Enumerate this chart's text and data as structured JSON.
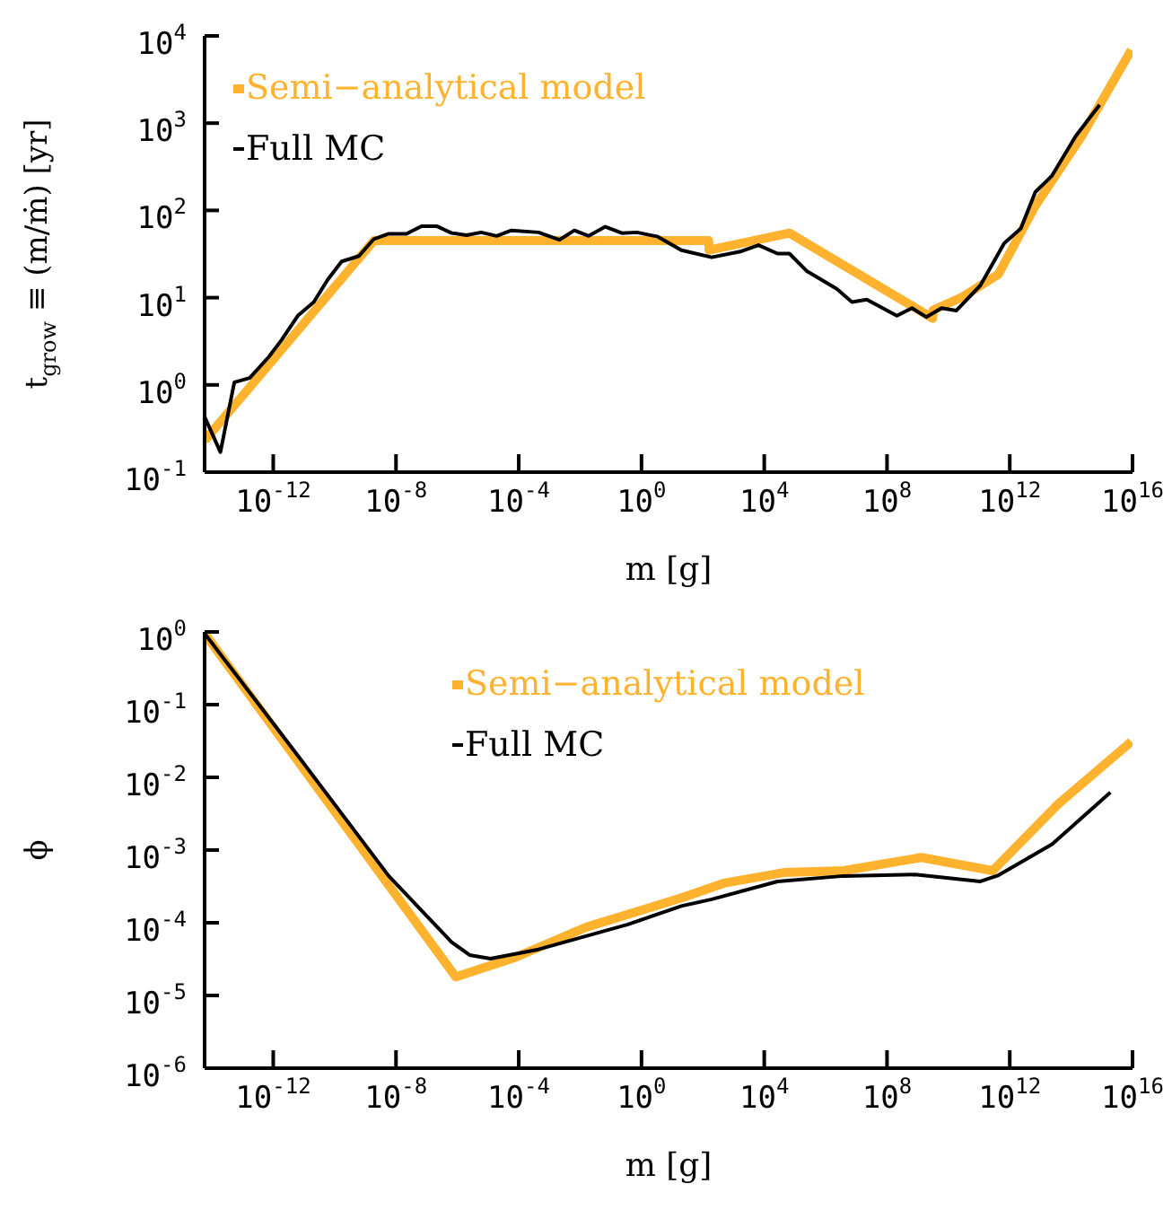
{
  "chart_data": [
    {
      "type": "line",
      "xlabel": "m  [g]",
      "ylabel": "t$_{grow}$ ≡ (m/ṁ)  [yr]",
      "log": "xy",
      "legend": "top left",
      "grid": false,
      "marker": "none",
      "line_style": "solid",
      "xlim": [
        5.8e-15,
        1e+16
      ],
      "xticks": [
        {
          "value": 1e-12,
          "label": "10$^{-12}$"
        },
        {
          "value": 1e-08,
          "label": "10$^{-8}$"
        },
        {
          "value": 0.0001,
          "label": "10$^{-4}$"
        },
        {
          "value": 1,
          "label": "10$^{0}$"
        },
        {
          "value": 10000.0,
          "label": "10$^{4}$"
        },
        {
          "value": 100000000.0,
          "label": "10$^{8}$"
        },
        {
          "value": 1000000000000.0,
          "label": "10$^{12}$"
        },
        {
          "value": 1e+16,
          "label": "10$^{16}$"
        }
      ],
      "ylim": [
        0.1,
        10000
      ],
      "yticks": [
        {
          "value": 0.1,
          "label": "10$^{-1}$"
        },
        {
          "value": 1,
          "label": "10$^{0}$"
        },
        {
          "value": 10,
          "label": "10$^{1}$"
        },
        {
          "value": 100,
          "label": "10$^{2}$"
        },
        {
          "value": 1000,
          "label": "10$^{3}$"
        },
        {
          "value": 10000,
          "label": "10$^{4}$"
        }
      ],
      "series": [
        {
          "name": "Semi−analytical model",
          "color": "#ffb22e",
          "x": [
            5.8e-15,
            1.9e-09,
            155,
            158,
            66000.0,
            3100000000.0,
            3160000000.0,
            29000000000.0,
            430000000000.0,
            6200000000000.0,
            220000000000000.0,
            9100000000000000.0
          ],
          "values": [
            0.23,
            45,
            45,
            35,
            55,
            5.8,
            7.2,
            10.2,
            18.6,
            107,
            708,
            6900
          ]
        },
        {
          "name": "Full MC",
          "color": "#000000",
          "x": [
            5.8e-15,
            1.9e-14,
            5.4e-14,
            1.7e-13,
            7.2e-13,
            1.9e-12,
            6.3e-12,
            2.1e-11,
            5.9e-11,
            1.7e-10,
            6.2e-10,
            1.9e-09,
            5.8e-09,
            2.2e-08,
            6.8e-08,
            2.1e-07,
            6.5e-07,
            2e-06,
            6e-06,
            1.9e-05,
            5.8e-05,
            0.00044,
            0.0021,
            0.0065,
            0.019,
            0.066,
            0.23,
            0.71,
            3.4,
            20,
            195,
            1800,
            6500,
            27000.0,
            66000.0,
            250000.0,
            2300000.0,
            7200000.0,
            22000000.0,
            210000000.0,
            650000000.0,
            1900000000.0,
            6000000000.0,
            18000000000.0,
            110000000000.0,
            660000000000.0,
            2300000000000.0,
            6800000000000.0,
            24000000000000.0,
            140000000000000.0,
            850000000000000.0
          ],
          "values": [
            0.43,
            0.17,
            1.07,
            1.2,
            2.1,
            3.3,
            6.2,
            8.9,
            16,
            26,
            30,
            47,
            54,
            54,
            66,
            66,
            55,
            52,
            56,
            51,
            59,
            56,
            46,
            59,
            51,
            65,
            55,
            56,
            50,
            35,
            29,
            34,
            40,
            32,
            32,
            20,
            12.6,
            8.9,
            9.5,
            6.2,
            7.6,
            6.0,
            7.6,
            7.1,
            13.8,
            42,
            62,
            162,
            251,
            708,
            1620
          ]
        }
      ]
    },
    {
      "type": "line",
      "xlabel": "m  [g]",
      "ylabel": "ϕ",
      "log": "xy",
      "legend": "top",
      "grid": false,
      "marker": "none",
      "line_style": "solid",
      "xlim": [
        5.8e-15,
        1e+16
      ],
      "xticks": [
        {
          "value": 1e-12,
          "label": "10$^{-12}$"
        },
        {
          "value": 1e-08,
          "label": "10$^{-8}$"
        },
        {
          "value": 0.0001,
          "label": "10$^{-4}$"
        },
        {
          "value": 1,
          "label": "10$^{0}$"
        },
        {
          "value": 10000.0,
          "label": "10$^{4}$"
        },
        {
          "value": 100000000.0,
          "label": "10$^{8}$"
        },
        {
          "value": 1000000000000.0,
          "label": "10$^{12}$"
        },
        {
          "value": 1e+16,
          "label": "10$^{16}$"
        }
      ],
      "ylim": [
        1e-06,
        1
      ],
      "yticks": [
        {
          "value": 1e-06,
          "label": "10$^{-6}$"
        },
        {
          "value": 1e-05,
          "label": "10$^{-5}$"
        },
        {
          "value": 0.0001,
          "label": "10$^{-4}$"
        },
        {
          "value": 0.001,
          "label": "10$^{-3}$"
        },
        {
          "value": 0.01,
          "label": "10$^{-2}$"
        },
        {
          "value": 0.1,
          "label": "10$^{-1}$"
        },
        {
          "value": 1,
          "label": "10$^{0}$"
        }
      ],
      "series": [
        {
          "name": "Semi−analytical model",
          "color": "#ffb22e",
          "x": [
            5.8e-15,
            8.9e-07,
            7.2e-05,
            0.016,
            20,
            480,
            43000.0,
            3800000.0,
            1300000000.0,
            280000000000.0,
            38000000000000.0,
            9100000000000000.0
          ],
          "values": [
            0.95,
            1.8e-05,
            3.3e-05,
            8.7e-05,
            0.00022,
            0.00035,
            0.00049,
            0.00052,
            0.00079,
            0.00052,
            0.0043,
            0.031
          ]
        },
        {
          "name": "Full MC",
          "color": "#000000",
          "x": [
            5.8e-15,
            6.9e-12,
            5.8e-09,
            6.5e-07,
            2.5e-06,
            1.2e-05,
            0.00044,
            0.36,
            20,
            195,
            27000.0,
            3800000.0,
            830000000.0,
            110000000000.0,
            430000000000.0,
            24000000000000.0,
            1900000000000000.0
          ],
          "values": [
            0.95,
            0.019,
            0.00044,
            5.4e-05,
            3.6e-05,
            3.2e-05,
            4.3e-05,
            9.5e-05,
            0.00017,
            0.00021,
            0.00037,
            0.00044,
            0.00046,
            0.00037,
            0.00045,
            0.0012,
            0.0062
          ]
        }
      ]
    }
  ]
}
